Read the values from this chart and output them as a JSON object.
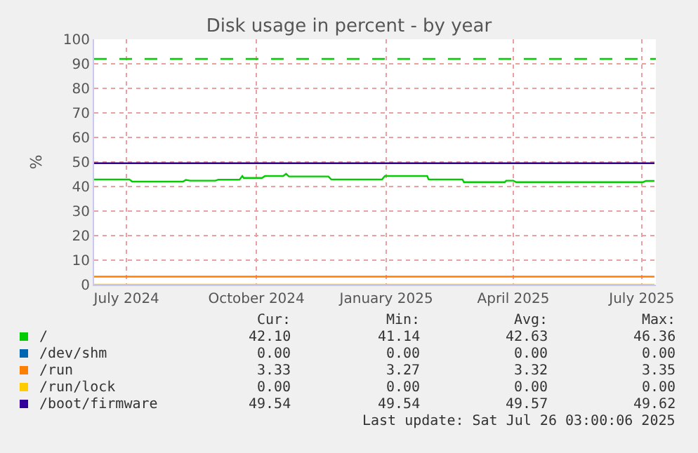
{
  "chart_data": {
    "type": "line",
    "title": "Disk usage in percent - by year",
    "ylabel": "%",
    "xlim": [
      "2024-06-23",
      "2025-07-26"
    ],
    "xticks": [
      {
        "value": "2024-07-16",
        "label": "July 2024"
      },
      {
        "value": "2024-10-16",
        "label": "October 2024"
      },
      {
        "value": "2025-01-16",
        "label": "January 2025"
      },
      {
        "value": "2025-04-16",
        "label": "April 2025"
      },
      {
        "value": "2025-07-16",
        "label": "July 2025"
      }
    ],
    "ylim": [
      0,
      100
    ],
    "yticks": [
      0,
      10,
      20,
      30,
      40,
      50,
      60,
      70,
      80,
      90,
      100
    ],
    "grid": true,
    "legend": "bottom left",
    "marker": "none",
    "line_style": "solid",
    "ref_lines": [
      {
        "axis": "y",
        "value": 92,
        "color": "#00cc00",
        "line_style": "dashed"
      }
    ],
    "series": [
      {
        "name": "/",
        "color": "#00cc00",
        "x": [
          "2024-06-23",
          "2024-07-18",
          "2024-07-20",
          "2024-08-25",
          "2024-08-27",
          "2024-08-30",
          "2024-09-17",
          "2024-09-19",
          "2024-10-04",
          "2024-10-06",
          "2024-10-07",
          "2024-10-20",
          "2024-10-22",
          "2024-11-04",
          "2024-11-06",
          "2024-11-08",
          "2024-12-06",
          "2024-12-08",
          "2025-01-13",
          "2025-01-15",
          "2025-02-14",
          "2025-02-15",
          "2025-03-11",
          "2025-03-12",
          "2025-04-10",
          "2025-04-11",
          "2025-04-16",
          "2025-04-18",
          "2025-07-17",
          "2025-07-19",
          "2025-07-25"
        ],
        "values": [
          42.9,
          42.9,
          42.0,
          42.0,
          42.7,
          42.4,
          42.4,
          42.8,
          42.8,
          44.3,
          43.5,
          43.5,
          44.3,
          44.3,
          45.2,
          44.1,
          44.1,
          42.9,
          42.9,
          44.3,
          44.3,
          42.9,
          42.9,
          41.8,
          41.8,
          42.4,
          42.4,
          41.8,
          41.8,
          42.3,
          42.3
        ]
      },
      {
        "name": "/dev/shm",
        "color": "#0066b3",
        "values": [
          null
        ]
      },
      {
        "name": "/run",
        "color": "#ff8000",
        "x": [
          "2024-06-23",
          "2025-07-25"
        ],
        "values": [
          3.3,
          3.3
        ]
      },
      {
        "name": "/run/lock",
        "color": "#ffcc00",
        "x": [
          "2024-06-23",
          "2025-07-25"
        ],
        "values": [
          0,
          0
        ]
      },
      {
        "name": "/boot/firmware",
        "color": "#330099",
        "x": [
          "2024-06-23",
          "2025-07-25"
        ],
        "values": [
          49.5,
          49.5
        ]
      }
    ],
    "annotations": [
      "Cur:",
      "Min:",
      "Avg:",
      "Max:",
      "42.10",
      "41.14",
      "42.63",
      "46.36",
      "0.00",
      "0.00",
      "0.00",
      "0.00",
      "3.33",
      "3.27",
      "3.32",
      "3.35",
      "0.00",
      "0.00",
      "0.00",
      "0.00",
      "49.54",
      "49.54",
      "49.57",
      "49.62",
      "Last update: Sat Jul 26 03:00:06 2025"
    ]
  }
}
